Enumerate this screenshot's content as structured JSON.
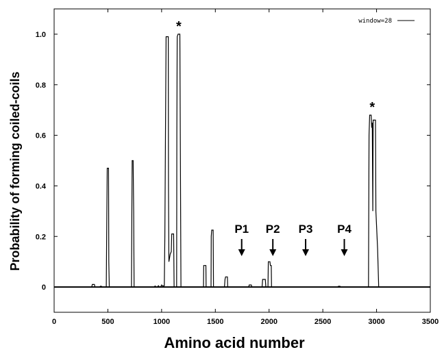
{
  "chart_data": {
    "type": "line",
    "xlabel": "Amino acid number",
    "ylabel": "Probability of forming coiled-coils",
    "xlim": [
      0,
      3500
    ],
    "ylim": [
      -0.1,
      1.1
    ],
    "xticks": [
      0,
      500,
      1000,
      1500,
      2000,
      2500,
      3000,
      3500
    ],
    "xtick_labels": [
      "0",
      "500",
      "1000",
      "1500",
      "2000",
      "2500",
      "3000",
      "3500"
    ],
    "yticks": [
      0,
      0.2,
      0.4,
      0.6,
      0.8,
      1.0
    ],
    "ytick_labels": [
      "0",
      "0.2",
      "0.4",
      "0.6",
      "0.8",
      "1.0"
    ],
    "grid": false,
    "legend_position": "top-right",
    "series": [
      {
        "name": "window=28",
        "color": "#000000",
        "points": [
          [
            0,
            0
          ],
          [
            350,
            0
          ],
          [
            355,
            0.01
          ],
          [
            375,
            0.01
          ],
          [
            380,
            0
          ],
          [
            425,
            0
          ],
          [
            430,
            0.003
          ],
          [
            440,
            0.003
          ],
          [
            445,
            0
          ],
          [
            485,
            0
          ],
          [
            490,
            0.28
          ],
          [
            494,
            0.47
          ],
          [
            506,
            0.47
          ],
          [
            509,
            0.1
          ],
          [
            513,
            0
          ],
          [
            720,
            0
          ],
          [
            723,
            0.28
          ],
          [
            726,
            0.5
          ],
          [
            735,
            0.5
          ],
          [
            740,
            0.3
          ],
          [
            744,
            0
          ],
          [
            930,
            0
          ],
          [
            940,
            0.004
          ],
          [
            950,
            0
          ],
          [
            960,
            0
          ],
          [
            970,
            0.005
          ],
          [
            980,
            0
          ],
          [
            990,
            0
          ],
          [
            1000,
            0.008
          ],
          [
            1010,
            0.004
          ],
          [
            1025,
            0.005
          ],
          [
            1030,
            0.2
          ],
          [
            1036,
            0.6
          ],
          [
            1042,
            0.99
          ],
          [
            1062,
            0.99
          ],
          [
            1064,
            0.4
          ],
          [
            1068,
            0.1
          ],
          [
            1080,
            0.13
          ],
          [
            1090,
            0.14
          ],
          [
            1094,
            0.21
          ],
          [
            1112,
            0.21
          ],
          [
            1116,
            0
          ],
          [
            1140,
            0
          ],
          [
            1142,
            0.6
          ],
          [
            1145,
            0.99
          ],
          [
            1153,
            1.0
          ],
          [
            1170,
            1.0
          ],
          [
            1175,
            0.5
          ],
          [
            1180,
            0
          ],
          [
            1390,
            0
          ],
          [
            1392,
            0.085
          ],
          [
            1412,
            0.085
          ],
          [
            1414,
            0
          ],
          [
            1460,
            0
          ],
          [
            1462,
            0.2
          ],
          [
            1466,
            0.225
          ],
          [
            1480,
            0.225
          ],
          [
            1483,
            0
          ],
          [
            1585,
            0
          ],
          [
            1590,
            0.03
          ],
          [
            1595,
            0.04
          ],
          [
            1612,
            0.04
          ],
          [
            1615,
            0
          ],
          [
            1810,
            0
          ],
          [
            1815,
            0.008
          ],
          [
            1835,
            0.008
          ],
          [
            1840,
            0
          ],
          [
            1935,
            0
          ],
          [
            1940,
            0.03
          ],
          [
            1965,
            0.03
          ],
          [
            1970,
            0
          ],
          [
            1990,
            0
          ],
          [
            1993,
            0.1
          ],
          [
            2008,
            0.1
          ],
          [
            2012,
            0.085
          ],
          [
            2020,
            0.085
          ],
          [
            2023,
            0
          ],
          [
            2640,
            0
          ],
          [
            2645,
            0.003
          ],
          [
            2660,
            0.003
          ],
          [
            2665,
            0
          ],
          [
            2925,
            0
          ],
          [
            2930,
            0.6
          ],
          [
            2936,
            0.68
          ],
          [
            2950,
            0.68
          ],
          [
            2955,
            0.63
          ],
          [
            2960,
            0.65
          ],
          [
            2965,
            0.3
          ],
          [
            2968,
            0.66
          ],
          [
            2990,
            0.66
          ],
          [
            2994,
            0.3
          ],
          [
            3010,
            0.15
          ],
          [
            3020,
            0
          ],
          [
            3500,
            0
          ]
        ]
      }
    ],
    "annotations": [
      {
        "text": "P1",
        "x": 1745,
        "arrow": true
      },
      {
        "text": "P2",
        "x": 2035,
        "arrow": true
      },
      {
        "text": "P3",
        "x": 2340,
        "arrow": true
      },
      {
        "text": "P4",
        "x": 2700,
        "arrow": true
      },
      {
        "text": "*",
        "x": 1160,
        "y": 1.0,
        "arrow": false
      },
      {
        "text": "*",
        "x": 2960,
        "y": 0.68,
        "arrow": false
      }
    ]
  }
}
